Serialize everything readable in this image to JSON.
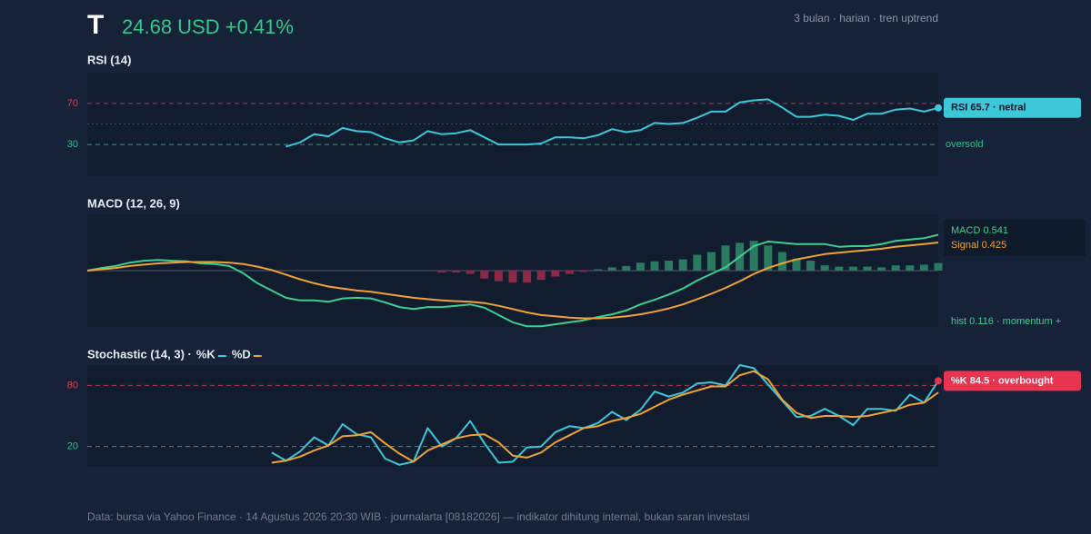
{
  "header": {
    "symbol": "T",
    "quote": "24.68 USD +0.41%",
    "meta": "3 bulan · harian · tren uptrend"
  },
  "chart_data": [
    {
      "type": "line",
      "title": "RSI (14)",
      "ylim": [
        0,
        100
      ],
      "yticks": [
        30,
        70
      ],
      "tick_colors": [
        "#2fbf8a",
        "#d9405a"
      ],
      "midline": 50,
      "series": [
        {
          "color": "#3cc8d8",
          "values": [
            null,
            null,
            null,
            null,
            null,
            null,
            null,
            null,
            null,
            null,
            null,
            null,
            null,
            null,
            28,
            32,
            40,
            38,
            46,
            43,
            42,
            36,
            32,
            34,
            43,
            40,
            41,
            44,
            37,
            30,
            30,
            30,
            31,
            37,
            37,
            36,
            39,
            45,
            42,
            44,
            51,
            50,
            51,
            56,
            62,
            62,
            71,
            73,
            74,
            66,
            57,
            57,
            59,
            58,
            54,
            60,
            60,
            64,
            65,
            62,
            65.7
          ]
        }
      ],
      "annotations": [
        {
          "text": "oversold",
          "y": 30,
          "color": "#2fbf8a"
        }
      ],
      "badge": {
        "text": "RSI 65.7 · netral",
        "color": "#3cc8d8",
        "text_color": "#0e1a2b"
      }
    },
    {
      "type": "line",
      "title": "MACD (12, 26, 9)",
      "ylim": [
        -0.85,
        0.85
      ],
      "zero_line": 0,
      "series": [
        {
          "type": "bar",
          "color": "#2a7a62",
          "negative_color": "#8a2a48",
          "values": [
            null,
            null,
            null,
            null,
            null,
            null,
            null,
            null,
            null,
            null,
            null,
            null,
            null,
            null,
            null,
            null,
            null,
            null,
            null,
            null,
            null,
            null,
            null,
            null,
            null,
            -0.03,
            -0.03,
            -0.05,
            -0.12,
            -0.16,
            -0.18,
            -0.18,
            -0.14,
            -0.09,
            -0.05,
            -0.02,
            0.02,
            0.05,
            0.07,
            0.12,
            0.14,
            0.15,
            0.17,
            0.24,
            0.28,
            0.38,
            0.42,
            0.45,
            0.38,
            0.28,
            0.18,
            0.15,
            0.08,
            0.06,
            0.06,
            0.06,
            0.05,
            0.08,
            0.08,
            0.09,
            0.116
          ]
        },
        {
          "color": "#3ecf8e",
          "values": [
            0,
            0.04,
            0.07,
            0.12,
            0.15,
            0.16,
            0.15,
            0.14,
            0.11,
            0.1,
            0.07,
            -0.04,
            -0.19,
            -0.3,
            -0.41,
            -0.45,
            -0.45,
            -0.47,
            -0.42,
            -0.41,
            -0.42,
            -0.48,
            -0.55,
            -0.58,
            -0.55,
            -0.55,
            -0.53,
            -0.51,
            -0.56,
            -0.67,
            -0.78,
            -0.84,
            -0.84,
            -0.81,
            -0.78,
            -0.75,
            -0.7,
            -0.66,
            -0.6,
            -0.51,
            -0.44,
            -0.36,
            -0.27,
            -0.15,
            -0.05,
            0.05,
            0.21,
            0.37,
            0.44,
            0.42,
            0.4,
            0.4,
            0.4,
            0.36,
            0.37,
            0.37,
            0.4,
            0.45,
            0.47,
            0.49,
            0.541
          ]
        },
        {
          "color": "#f0a232",
          "values": [
            0,
            0.02,
            0.04,
            0.07,
            0.09,
            0.11,
            0.12,
            0.13,
            0.13,
            0.13,
            0.12,
            0.1,
            0.06,
            0.01,
            -0.06,
            -0.13,
            -0.19,
            -0.24,
            -0.27,
            -0.3,
            -0.32,
            -0.35,
            -0.38,
            -0.41,
            -0.43,
            -0.45,
            -0.46,
            -0.47,
            -0.49,
            -0.53,
            -0.58,
            -0.63,
            -0.67,
            -0.69,
            -0.71,
            -0.72,
            -0.72,
            -0.71,
            -0.69,
            -0.66,
            -0.62,
            -0.57,
            -0.51,
            -0.43,
            -0.35,
            -0.26,
            -0.16,
            -0.05,
            0.04,
            0.11,
            0.17,
            0.21,
            0.25,
            0.27,
            0.29,
            0.31,
            0.33,
            0.36,
            0.38,
            0.4,
            0.425
          ]
        }
      ],
      "legend_texts": [
        "MACD 0.541",
        "Signal 0.425"
      ],
      "note": {
        "text": "hist 0.116 · momentum +",
        "color": "#3ecf8e"
      }
    },
    {
      "type": "line",
      "title": "Stochastic (14, 3) ·",
      "ylim": [
        0,
        100
      ],
      "yticks": [
        20,
        80
      ],
      "tick_colors": [
        "#2fbf8a",
        "#d9405a"
      ],
      "series": [
        {
          "name": "%K",
          "color": "#3cc8d8",
          "values": [
            null,
            null,
            null,
            null,
            null,
            null,
            null,
            null,
            null,
            null,
            null,
            null,
            null,
            14,
            6,
            15,
            29,
            21,
            42,
            32,
            29,
            8,
            2,
            5,
            38,
            20,
            28,
            45,
            23,
            4,
            5,
            19,
            20,
            34,
            40,
            38,
            43,
            54,
            46,
            56,
            74,
            69,
            73,
            82,
            83,
            80,
            100,
            97,
            81,
            65,
            49,
            50,
            57,
            50,
            41,
            57,
            57,
            55,
            71,
            63,
            84.5
          ]
        },
        {
          "name": "%D",
          "color": "#f0a232",
          "values": [
            null,
            null,
            null,
            null,
            null,
            null,
            null,
            null,
            null,
            null,
            null,
            null,
            null,
            4,
            6,
            10,
            16,
            21,
            30,
            31,
            34,
            23,
            13,
            5,
            16,
            22,
            28,
            31,
            32,
            24,
            11,
            9,
            14,
            24,
            31,
            38,
            40,
            45,
            48,
            52,
            59,
            66,
            71,
            75,
            79,
            79,
            90,
            94,
            86,
            66,
            53,
            48,
            50,
            50,
            49,
            50,
            53,
            56,
            61,
            63,
            73
          ]
        }
      ],
      "badge": {
        "text": "%K 84.5 · overbought",
        "color": "#e8344e",
        "text_color": "#ffffff"
      }
    }
  ],
  "footer": "Data: bursa via Yahoo Finance · 14 Agustus 2026 20:30 WIB · journalarta [08182026] — indikator dihitung internal, bukan saran investasi"
}
